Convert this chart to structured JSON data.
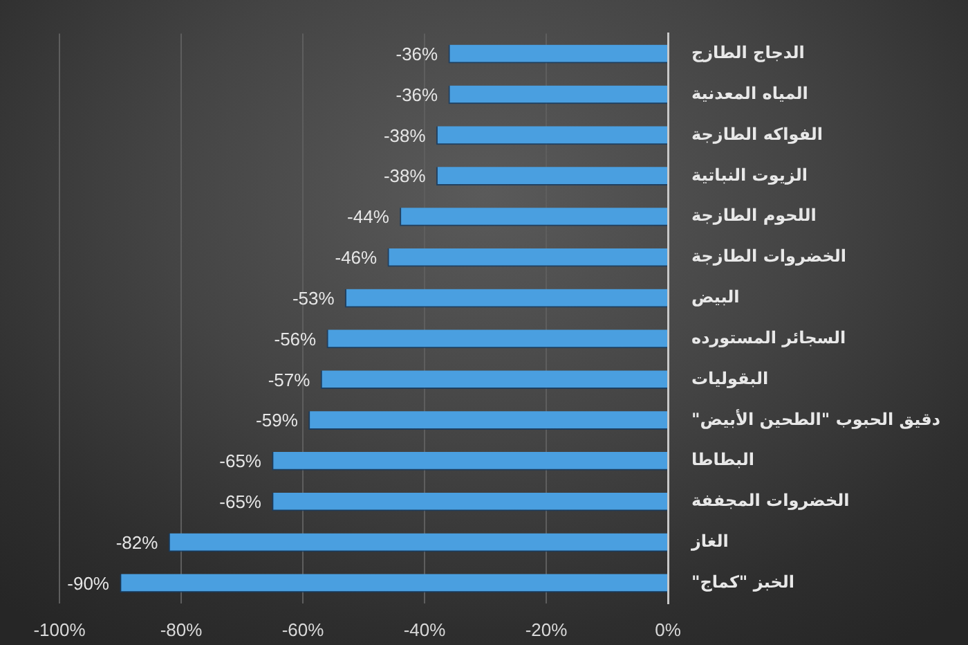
{
  "chart_data": {
    "type": "bar",
    "orientation": "horizontal",
    "categories": [
      "الدجاج الطازج",
      "المياه المعدنية",
      "الفواكه الطازجة",
      "الزيوت النباتية",
      "اللحوم الطازجة",
      "الخضروات الطازجة",
      "البيض",
      "السجائر المستورده",
      "البقوليات",
      "دقيق الحبوب \"الطحين الأبيض\"",
      "البطاطا",
      "الخضروات المجففة",
      "الغاز",
      "الخبز \"كماج\""
    ],
    "values": [
      -36,
      -36,
      -38,
      -38,
      -44,
      -46,
      -53,
      -56,
      -57,
      -59,
      -65,
      -65,
      -82,
      -90
    ],
    "value_labels": [
      "-36%",
      "-36%",
      "-38%",
      "-38%",
      "-44%",
      "-46%",
      "-53%",
      "-56%",
      "-57%",
      "-59%",
      "-65%",
      "-65%",
      "-82%",
      "-90%"
    ],
    "color": "#4a9fe0",
    "xlim": [
      -100,
      0
    ],
    "xticks": [
      {
        "value": -100,
        "label": "-100%"
      },
      {
        "value": -80,
        "label": "-80%"
      },
      {
        "value": -60,
        "label": "-60%"
      },
      {
        "value": -40,
        "label": "-40%"
      },
      {
        "value": -20,
        "label": "-20%"
      },
      {
        "value": 0,
        "label": "0%"
      }
    ],
    "grid": "x"
  }
}
